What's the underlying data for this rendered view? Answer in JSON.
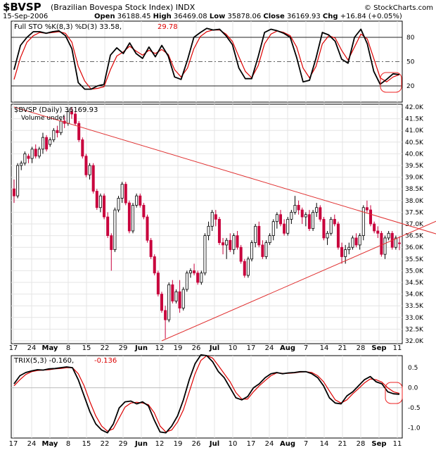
{
  "header": {
    "symbol": "$BVSP",
    "name": "(Brazilian Bovespa Stock Index)",
    "exchange": "INDX",
    "date": "15-Sep-2006",
    "open_label": "Open",
    "open": "36188.45",
    "high_label": "High",
    "high": "36469.08",
    "low_label": "Low",
    "low": "35878.06",
    "close_label": "Close",
    "close": "36169.93",
    "chg_label": "Chg",
    "chg": "+16.84 (+0.05%)",
    "watermark": "© StockCharts.com"
  },
  "colors": {
    "up": "#ffffff",
    "down": "#c8003c",
    "signal": "#dd0000",
    "trendline": "#e03030",
    "indicator": "#000000",
    "circle": "#ee2222"
  },
  "x_axis": {
    "labels": [
      "17",
      "24",
      "May",
      "8",
      "15",
      "22",
      "29",
      "Jun",
      "12",
      "19",
      "26",
      "Jul",
      "10",
      "17",
      "24",
      "Aug",
      "7",
      "14",
      "21",
      "28",
      "Sep",
      "11"
    ],
    "bold": [
      "May",
      "Jun",
      "Jul",
      "Aug",
      "Sep"
    ]
  },
  "chart_data": [
    {
      "type": "line",
      "panel": "Full STO %K(8,3) %D(3)",
      "legend_main": "Full STO %K(8,3) %D(3) 33.58,",
      "legend_signal": "29.78",
      "yticks": [
        20,
        50,
        80
      ],
      "ylim": [
        0,
        100
      ],
      "series": [
        {
          "name": "%K(8,3)",
          "values": [
            40,
            70,
            80,
            87,
            87,
            85,
            87,
            88,
            82,
            66,
            24,
            16,
            16,
            20,
            22,
            58,
            67,
            60,
            73,
            60,
            54,
            68,
            56,
            70,
            57,
            31,
            28,
            52,
            80,
            86,
            91,
            89,
            90,
            82,
            71,
            42,
            29,
            29,
            56,
            86,
            90,
            88,
            85,
            80,
            55,
            25,
            27,
            54,
            86,
            83,
            75,
            53,
            48,
            80,
            90,
            72,
            38,
            22,
            28,
            35,
            34
          ]
        },
        {
          "name": "%D(3)",
          "values": [
            28,
            55,
            74,
            82,
            86,
            85,
            86,
            87,
            85,
            74,
            44,
            26,
            16,
            17,
            19,
            40,
            57,
            62,
            69,
            63,
            58,
            64,
            60,
            65,
            59,
            40,
            31,
            42,
            66,
            81,
            87,
            89,
            89,
            84,
            75,
            56,
            38,
            30,
            45,
            72,
            84,
            88,
            86,
            82,
            68,
            42,
            30,
            44,
            72,
            82,
            79,
            64,
            52,
            68,
            84,
            78,
            54,
            30,
            25,
            31,
            34
          ]
        }
      ],
      "bands": [
        20,
        50,
        80
      ],
      "annotations": [
        "circle"
      ]
    },
    {
      "type": "candlestick",
      "panel": "$BVSP (Daily)",
      "legend": "$BVSP (Daily) 36169.93",
      "sublegend": "Volume undef",
      "yticks": [
        "32.0K",
        "32.5K",
        "33.0K",
        "33.5K",
        "34.0K",
        "34.5K",
        "35.0K",
        "35.5K",
        "36.0K",
        "36.5K",
        "37.0K",
        "37.5K",
        "38.0K",
        "38.5K",
        "39.0K",
        "39.5K",
        "40.0K",
        "40.5K",
        "41.0K",
        "41.5K",
        "42.0K"
      ],
      "ylim": [
        32000,
        42000
      ],
      "x_dates": [
        "Apr 17",
        "Apr 18",
        "Apr 19",
        "Apr 20",
        "Apr 21",
        "Apr 24",
        "Apr 25",
        "Apr 26",
        "Apr 27",
        "Apr 28",
        "May 1",
        "May 2",
        "May 3",
        "May 4",
        "May 5",
        "May 8",
        "May 9",
        "May 10",
        "May 11",
        "May 12",
        "May 15",
        "May 16",
        "May 17",
        "May 18",
        "May 19",
        "May 22",
        "May 23",
        "May 24",
        "May 25",
        "May 26",
        "May 29",
        "May 30",
        "May 31",
        "Jun 1",
        "Jun 2",
        "Jun 5",
        "Jun 6",
        "Jun 7",
        "Jun 8",
        "Jun 9",
        "Jun 12",
        "Jun 13",
        "Jun 14",
        "Jun 15",
        "Jun 16",
        "Jun 19",
        "Jun 20",
        "Jun 21",
        "Jun 22",
        "Jun 23",
        "Jun 26",
        "Jun 27",
        "Jun 28",
        "Jun 29",
        "Jun 30",
        "Jul 3",
        "Jul 4",
        "Jul 5",
        "Jul 6",
        "Jul 7",
        "Jul 10",
        "Jul 11",
        "Jul 12",
        "Jul 13",
        "Jul 14",
        "Jul 17",
        "Jul 18",
        "Jul 19",
        "Jul 20",
        "Jul 21",
        "Jul 24",
        "Jul 25",
        "Jul 26",
        "Jul 27",
        "Jul 28",
        "Jul 31",
        "Aug 1",
        "Aug 2",
        "Aug 3",
        "Aug 4",
        "Aug 7",
        "Aug 8",
        "Aug 9",
        "Aug 10",
        "Aug 11",
        "Aug 14",
        "Aug 15",
        "Aug 16",
        "Aug 17",
        "Aug 18",
        "Aug 21",
        "Aug 22",
        "Aug 23",
        "Aug 24",
        "Aug 25",
        "Aug 28",
        "Aug 29",
        "Aug 30",
        "Aug 31",
        "Sep 1",
        "Sep 4",
        "Sep 5",
        "Sep 6",
        "Sep 8",
        "Sep 11",
        "Sep 12",
        "Sep 13",
        "Sep 14",
        "Sep 15"
      ],
      "ohlc": [
        [
          38500,
          38900,
          37900,
          38200
        ],
        [
          38200,
          39600,
          38100,
          39500
        ],
        [
          39500,
          39700,
          39300,
          39600
        ],
        [
          39600,
          40100,
          39500,
          40000
        ],
        [
          39900,
          40000,
          39600,
          39800
        ],
        [
          39800,
          40300,
          39600,
          40200
        ],
        [
          40200,
          40400,
          39800,
          39900
        ],
        [
          39900,
          40300,
          39800,
          40200
        ],
        [
          40200,
          40900,
          40000,
          40700
        ],
        [
          40700,
          40800,
          40100,
          40200
        ],
        [
          40400,
          40700,
          40300,
          40600
        ],
        [
          40600,
          41100,
          40500,
          41000
        ],
        [
          41000,
          41200,
          40700,
          40900
        ],
        [
          40900,
          41500,
          40800,
          41400
        ],
        [
          41400,
          41600,
          41100,
          41300
        ],
        [
          41300,
          41900,
          41200,
          41800
        ],
        [
          41800,
          42000,
          41500,
          41700
        ],
        [
          41700,
          41800,
          41200,
          41300
        ],
        [
          41300,
          41400,
          40500,
          40600
        ],
        [
          40600,
          40700,
          39800,
          39900
        ],
        [
          39900,
          40000,
          39000,
          39100
        ],
        [
          39100,
          39600,
          38900,
          39500
        ],
        [
          39500,
          39600,
          38300,
          38400
        ],
        [
          38400,
          38500,
          37600,
          37700
        ],
        [
          37700,
          38300,
          37500,
          38200
        ],
        [
          38200,
          38300,
          37200,
          37300
        ],
        [
          37300,
          37500,
          36400,
          36500
        ],
        [
          36500,
          36600,
          35000,
          35900
        ],
        [
          35900,
          37700,
          35800,
          37600
        ],
        [
          37600,
          38200,
          37500,
          38100
        ],
        [
          38100,
          38800,
          37900,
          38700
        ],
        [
          38700,
          38800,
          37800,
          37900
        ],
        [
          37900,
          38000,
          36600,
          36700
        ],
        [
          36700,
          37900,
          36600,
          37800
        ],
        [
          37800,
          38300,
          37700,
          38200
        ],
        [
          38200,
          38300,
          37700,
          37800
        ],
        [
          37800,
          37900,
          37200,
          37300
        ],
        [
          37300,
          37400,
          36200,
          36300
        ],
        [
          36300,
          36400,
          35500,
          35600
        ],
        [
          35600,
          35700,
          34800,
          34900
        ],
        [
          34900,
          35000,
          33900,
          34000
        ],
        [
          34000,
          34100,
          33200,
          33300
        ],
        [
          33300,
          33500,
          32100,
          32900
        ],
        [
          32900,
          34500,
          32800,
          34400
        ],
        [
          34400,
          34600,
          33600,
          33700
        ],
        [
          33700,
          34200,
          33600,
          34100
        ],
        [
          34100,
          34600,
          33200,
          33400
        ],
        [
          33400,
          34300,
          33300,
          34200
        ],
        [
          34200,
          35000,
          34100,
          34900
        ],
        [
          34900,
          35100,
          34700,
          35000
        ],
        [
          35000,
          35300,
          34800,
          34900
        ],
        [
          34900,
          35000,
          34400,
          34500
        ],
        [
          34500,
          35000,
          34400,
          34900
        ],
        [
          34900,
          36600,
          34800,
          36500
        ],
        [
          36500,
          37100,
          36300,
          36900
        ],
        [
          36900,
          37600,
          36700,
          37500
        ],
        [
          37400,
          37600,
          36900,
          37200
        ],
        [
          37200,
          37300,
          36100,
          36200
        ],
        [
          36200,
          36400,
          35700,
          36100
        ],
        [
          36100,
          36400,
          35500,
          36300
        ],
        [
          36300,
          36600,
          35800,
          35900
        ],
        [
          35900,
          36600,
          35700,
          36500
        ],
        [
          36500,
          36700,
          35900,
          36000
        ],
        [
          36000,
          36100,
          35300,
          35400
        ],
        [
          35400,
          35500,
          34700,
          34800
        ],
        [
          34800,
          35600,
          34700,
          35500
        ],
        [
          35500,
          36300,
          35400,
          36200
        ],
        [
          36200,
          37000,
          36000,
          36900
        ],
        [
          36900,
          37100,
          36000,
          36100
        ],
        [
          36100,
          36300,
          35500,
          35600
        ],
        [
          35600,
          36300,
          35500,
          36200
        ],
        [
          36200,
          36600,
          36100,
          36500
        ],
        [
          36500,
          37200,
          36300,
          37100
        ],
        [
          37100,
          37500,
          36800,
          37400
        ],
        [
          37400,
          37600,
          36900,
          37000
        ],
        [
          37000,
          37200,
          36500,
          36600
        ],
        [
          36600,
          37300,
          36500,
          37200
        ],
        [
          37200,
          37600,
          37000,
          37500
        ],
        [
          37500,
          38200,
          37400,
          37800
        ],
        [
          37800,
          38000,
          37400,
          37600
        ],
        [
          37600,
          37700,
          37000,
          37300
        ],
        [
          37300,
          37500,
          36900,
          37400
        ],
        [
          37400,
          37600,
          36700,
          36800
        ],
        [
          36800,
          37600,
          36700,
          37500
        ],
        [
          37500,
          37900,
          37300,
          37700
        ],
        [
          37700,
          37800,
          37100,
          37200
        ],
        [
          37200,
          37300,
          36300,
          36400
        ],
        [
          36400,
          36700,
          36100,
          36600
        ],
        [
          36600,
          37300,
          36500,
          37200
        ],
        [
          37200,
          37400,
          36900,
          37000
        ],
        [
          37000,
          37100,
          35900,
          36000
        ],
        [
          36000,
          36200,
          35300,
          35600
        ],
        [
          35600,
          36100,
          35300,
          35900
        ],
        [
          35900,
          36200,
          35700,
          36000
        ],
        [
          36000,
          36500,
          35900,
          36400
        ],
        [
          36400,
          36600,
          36000,
          36100
        ],
        [
          36100,
          36600,
          35900,
          36500
        ],
        [
          36500,
          37800,
          36300,
          37700
        ],
        [
          37700,
          38000,
          37500,
          37600
        ],
        [
          37600,
          37800,
          36900,
          37000
        ],
        [
          37000,
          37100,
          36600,
          36700
        ],
        [
          36700,
          36900,
          36400,
          36600
        ],
        [
          36600,
          36700,
          35600,
          35700
        ],
        [
          35700,
          36500,
          35500,
          36400
        ],
        [
          36400,
          36700,
          36300,
          36600
        ],
        [
          36600,
          36700,
          35900,
          36000
        ],
        [
          36000,
          36500,
          35900,
          36400
        ],
        [
          36188,
          36469,
          35878,
          36170
        ]
      ],
      "trendlines": [
        {
          "name": "upper",
          "from": [
            "Apr 17",
            42000
          ],
          "to": [
            "Sep 15",
            37000
          ]
        },
        {
          "name": "lower",
          "from": [
            "Jun 13",
            32000
          ],
          "to": [
            "Sep 15",
            36500
          ]
        }
      ]
    },
    {
      "type": "line",
      "panel": "TRIX(5,3)",
      "legend_main": "TRIX(5,3) -0.160,",
      "legend_signal": "-0.136",
      "yticks": [
        "0.5",
        "0.0",
        "-0.5",
        "-1.0"
      ],
      "ylim": [
        -1.25,
        0.8
      ],
      "series": [
        {
          "name": "TRIX(5,3)",
          "values": [
            0.1,
            0.3,
            0.38,
            0.42,
            0.45,
            0.44,
            0.47,
            0.48,
            0.5,
            0.52,
            0.5,
            0.2,
            -0.2,
            -0.6,
            -0.9,
            -1.05,
            -1.12,
            -0.9,
            -0.5,
            -0.35,
            -0.33,
            -0.4,
            -0.35,
            -0.45,
            -0.8,
            -1.1,
            -1.12,
            -0.95,
            -0.7,
            -0.3,
            0.2,
            0.6,
            0.82,
            0.8,
            0.65,
            0.4,
            0.25,
            0.0,
            -0.25,
            -0.3,
            -0.22,
            0.0,
            0.1,
            0.25,
            0.35,
            0.38,
            0.35,
            0.37,
            0.38,
            0.4,
            0.4,
            0.35,
            0.25,
            0.05,
            -0.25,
            -0.38,
            -0.4,
            -0.2,
            -0.1,
            0.05,
            0.2,
            0.28,
            0.15,
            0.1,
            -0.1,
            -0.15,
            -0.16
          ]
        },
        {
          "name": "Signal",
          "values": [
            0.05,
            0.2,
            0.33,
            0.4,
            0.43,
            0.44,
            0.45,
            0.47,
            0.48,
            0.5,
            0.5,
            0.35,
            0.05,
            -0.35,
            -0.7,
            -0.95,
            -1.08,
            -1.02,
            -0.75,
            -0.48,
            -0.38,
            -0.36,
            -0.38,
            -0.42,
            -0.62,
            -0.95,
            -1.1,
            -1.05,
            -0.85,
            -0.55,
            -0.1,
            0.35,
            0.68,
            0.8,
            0.74,
            0.55,
            0.35,
            0.15,
            -0.12,
            -0.28,
            -0.28,
            -0.1,
            0.05,
            0.18,
            0.3,
            0.37,
            0.36,
            0.36,
            0.37,
            0.39,
            0.4,
            0.38,
            0.3,
            0.15,
            -0.08,
            -0.3,
            -0.38,
            -0.3,
            -0.15,
            -0.02,
            0.12,
            0.22,
            0.2,
            0.14,
            0.0,
            -0.1,
            -0.14
          ]
        }
      ],
      "annotations": [
        "circle"
      ]
    }
  ]
}
